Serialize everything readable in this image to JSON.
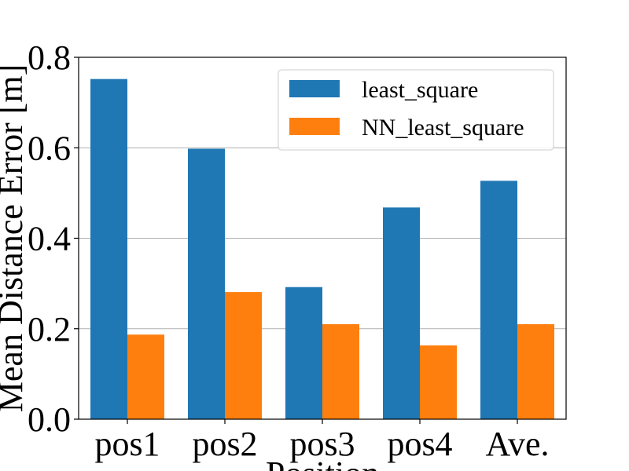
{
  "chart_data": {
    "type": "bar",
    "categories": [
      "pos1",
      "pos2",
      "pos3",
      "pos4",
      "Ave."
    ],
    "series": [
      {
        "name": "least_square",
        "color": "#1f77b4",
        "values": [
          0.752,
          0.598,
          0.292,
          0.468,
          0.527
        ]
      },
      {
        "name": "NN_least_square",
        "color": "#ff7f0e",
        "values": [
          0.187,
          0.281,
          0.21,
          0.163,
          0.21
        ]
      }
    ],
    "xlabel": "Position",
    "ylabel": "Mean Distance Error [m]",
    "ylim": [
      0,
      0.8
    ],
    "yticks": [
      "0.0",
      "0.2",
      "0.4",
      "0.6",
      "0.8"
    ],
    "grid": "horizontal",
    "legend_position": "top-right"
  }
}
